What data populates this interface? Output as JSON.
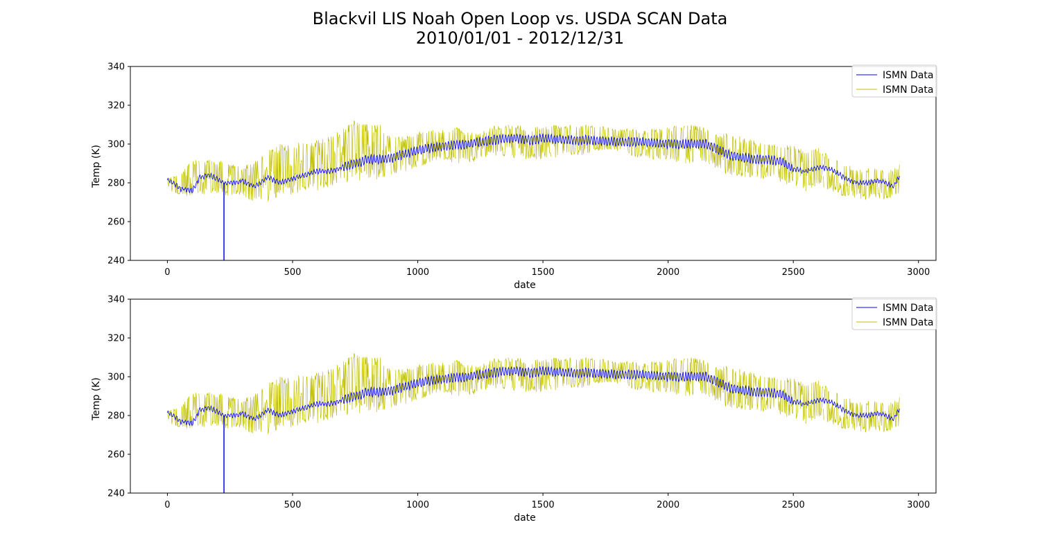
{
  "figure": {
    "title_line1": "Blackvil LIS Noah Open Loop vs. USDA SCAN Data",
    "title_line2": "2010/01/01 - 2012/12/31"
  },
  "colors": {
    "series_1": "#0000ff",
    "series_2": "#bfbf00",
    "axes": "#000000",
    "legend_border": "#cccccc"
  },
  "chart_data": [
    {
      "type": "line",
      "xlabel": "date",
      "ylabel": "Temp (K)",
      "xlim": [
        -148,
        3070
      ],
      "ylim": [
        240,
        340
      ],
      "xticks": [
        0,
        500,
        1000,
        1500,
        2000,
        2500,
        3000
      ],
      "yticks": [
        240,
        260,
        280,
        300,
        320,
        340
      ],
      "grid": false,
      "legend_placement": "top-right",
      "series": [
        {
          "name": "ISMN Data",
          "color": "#0000ff",
          "x": [
            0,
            50,
            100,
            130,
            170,
            200,
            226,
            260,
            300,
            350,
            400,
            450,
            500,
            550,
            600,
            650,
            700,
            750,
            800,
            850,
            900,
            950,
            1000,
            1100,
            1200,
            1300,
            1350,
            1400,
            1450,
            1500,
            1600,
            1700,
            1800,
            1900,
            2000,
            2100,
            2150,
            2200,
            2250,
            2300,
            2350,
            2400,
            2450,
            2500,
            2550,
            2600,
            2650,
            2700,
            2750,
            2800,
            2850,
            2900,
            2925
          ],
          "y": [
            282,
            277,
            276,
            283,
            284,
            282,
            280,
            280,
            281,
            278,
            283,
            280,
            282,
            284,
            286,
            286,
            288,
            290,
            292,
            292,
            293,
            295,
            297,
            299,
            300,
            302,
            303,
            303,
            302,
            303,
            302,
            302,
            301,
            301,
            300,
            300,
            300,
            297,
            294,
            293,
            292,
            292,
            291,
            287,
            286,
            288,
            287,
            283,
            280,
            280,
            281,
            278,
            284
          ],
          "min_spike": {
            "x": 226,
            "y": 240
          }
        },
        {
          "name": "ISMN Data",
          "color": "#bfbf00",
          "x": [
            0,
            50,
            100,
            150,
            200,
            250,
            300,
            350,
            400,
            450,
            500,
            550,
            600,
            650,
            700,
            750,
            800,
            850,
            900,
            950,
            1000,
            1050,
            1100,
            1150,
            1200,
            1250,
            1300,
            1350,
            1400,
            1450,
            1500,
            1550,
            1600,
            1650,
            1700,
            1750,
            1800,
            1850,
            1900,
            1950,
            2000,
            2050,
            2100,
            2150,
            2200,
            2250,
            2300,
            2350,
            2400,
            2450,
            2500,
            2550,
            2600,
            2650,
            2700,
            2750,
            2800,
            2850,
            2900,
            2925
          ],
          "y_low": [
            275,
            274,
            272,
            274,
            274,
            273,
            274,
            268,
            270,
            273,
            274,
            276,
            276,
            278,
            280,
            281,
            281,
            282,
            284,
            286,
            288,
            290,
            292,
            290,
            290,
            292,
            294,
            293,
            292,
            292,
            292,
            293,
            294,
            294,
            296,
            296,
            296,
            294,
            292,
            292,
            292,
            290,
            290,
            290,
            286,
            283,
            282,
            282,
            282,
            280,
            278,
            276,
            278,
            276,
            273,
            272,
            271,
            272,
            271,
            275
          ],
          "y_high": [
            282,
            285,
            292,
            292,
            292,
            290,
            288,
            292,
            298,
            300,
            300,
            302,
            302,
            304,
            308,
            313,
            310,
            310,
            304,
            304,
            306,
            308,
            308,
            309,
            306,
            306,
            310,
            310,
            310,
            308,
            310,
            310,
            310,
            310,
            310,
            309,
            308,
            308,
            307,
            308,
            309,
            310,
            310,
            309,
            306,
            305,
            304,
            302,
            300,
            300,
            299,
            298,
            298,
            294,
            290,
            288,
            288,
            287,
            287,
            290
          ]
        }
      ]
    },
    {
      "type": "line",
      "xlabel": "date",
      "ylabel": "Temp (K)",
      "xlim": [
        -148,
        3070
      ],
      "ylim": [
        240,
        340
      ],
      "xticks": [
        0,
        500,
        1000,
        1500,
        2000,
        2500,
        3000
      ],
      "yticks": [
        240,
        260,
        280,
        300,
        320,
        340
      ],
      "grid": false,
      "legend_placement": "top-right",
      "series": [
        {
          "name": "ISMN Data",
          "color": "#0000ff",
          "x": [
            0,
            50,
            100,
            130,
            170,
            200,
            226,
            260,
            300,
            350,
            400,
            450,
            500,
            550,
            600,
            650,
            700,
            750,
            800,
            850,
            900,
            950,
            1000,
            1100,
            1200,
            1300,
            1350,
            1400,
            1450,
            1500,
            1600,
            1700,
            1800,
            1900,
            2000,
            2100,
            2150,
            2200,
            2250,
            2300,
            2350,
            2400,
            2450,
            2500,
            2550,
            2600,
            2650,
            2700,
            2750,
            2800,
            2850,
            2900,
            2925
          ],
          "y": [
            282,
            277,
            276,
            283,
            284,
            282,
            280,
            280,
            281,
            278,
            283,
            280,
            282,
            284,
            286,
            286,
            288,
            290,
            292,
            292,
            293,
            295,
            297,
            299,
            300,
            302,
            303,
            303,
            302,
            303,
            302,
            302,
            301,
            301,
            300,
            300,
            300,
            297,
            294,
            293,
            292,
            292,
            291,
            287,
            286,
            288,
            287,
            283,
            280,
            280,
            281,
            278,
            284
          ],
          "min_spike": {
            "x": 226,
            "y": 240
          }
        },
        {
          "name": "ISMN Data",
          "color": "#bfbf00",
          "x": [
            0,
            50,
            100,
            150,
            200,
            250,
            300,
            350,
            400,
            450,
            500,
            550,
            600,
            650,
            700,
            750,
            800,
            850,
            900,
            950,
            1000,
            1050,
            1100,
            1150,
            1200,
            1250,
            1300,
            1350,
            1400,
            1450,
            1500,
            1550,
            1600,
            1650,
            1700,
            1750,
            1800,
            1850,
            1900,
            1950,
            2000,
            2050,
            2100,
            2150,
            2200,
            2250,
            2300,
            2350,
            2400,
            2450,
            2500,
            2550,
            2600,
            2650,
            2700,
            2750,
            2800,
            2850,
            2900,
            2925
          ],
          "y_low": [
            275,
            274,
            272,
            274,
            274,
            273,
            274,
            268,
            270,
            273,
            274,
            276,
            276,
            278,
            280,
            281,
            281,
            282,
            284,
            286,
            288,
            290,
            292,
            290,
            290,
            292,
            294,
            293,
            292,
            292,
            292,
            293,
            294,
            294,
            296,
            296,
            296,
            294,
            292,
            292,
            292,
            290,
            290,
            290,
            286,
            283,
            282,
            282,
            282,
            280,
            278,
            276,
            278,
            276,
            273,
            272,
            271,
            272,
            271,
            275
          ],
          "y_high": [
            282,
            285,
            292,
            292,
            292,
            290,
            288,
            292,
            298,
            300,
            300,
            302,
            302,
            304,
            308,
            313,
            310,
            310,
            304,
            304,
            306,
            308,
            308,
            309,
            306,
            306,
            310,
            310,
            310,
            308,
            310,
            310,
            310,
            310,
            310,
            309,
            308,
            308,
            307,
            308,
            309,
            310,
            310,
            309,
            306,
            305,
            304,
            302,
            300,
            300,
            299,
            298,
            298,
            294,
            290,
            288,
            288,
            287,
            287,
            290
          ]
        }
      ]
    }
  ]
}
